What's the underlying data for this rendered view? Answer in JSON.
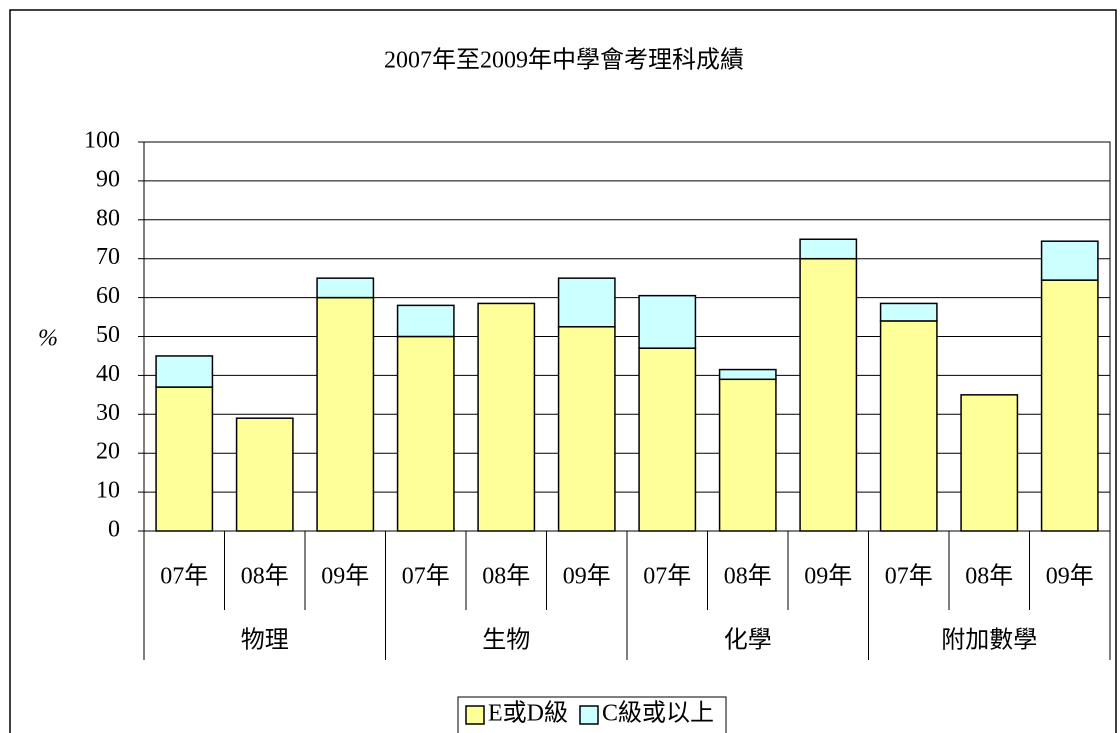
{
  "chart_data": {
    "type": "stacked_bar",
    "title": "2007年至2009年中學會考理科成績",
    "ylabel": "%",
    "categories": [
      "07年",
      "08年",
      "09年",
      "07年",
      "08年",
      "09年",
      "07年",
      "08年",
      "09年",
      "07年",
      "08年",
      "09年"
    ],
    "groups": [
      "物理",
      "生物",
      "化學",
      "附加數學"
    ],
    "series": [
      {
        "name": "E或D級",
        "color": "#ffff99",
        "values": [
          37,
          29,
          60,
          50,
          58.5,
          52.5,
          47,
          39,
          70,
          54,
          35,
          64.5
        ]
      },
      {
        "name": "C級或以上",
        "color": "#ccffff",
        "values": [
          8,
          0,
          5,
          8,
          0,
          12.5,
          13.5,
          2.5,
          5,
          4.5,
          0,
          10
        ]
      }
    ],
    "ylim": [
      0,
      100
    ],
    "yticks": [
      0,
      10,
      20,
      30,
      40,
      50,
      60,
      70,
      80,
      90,
      100
    ],
    "grid": true
  }
}
